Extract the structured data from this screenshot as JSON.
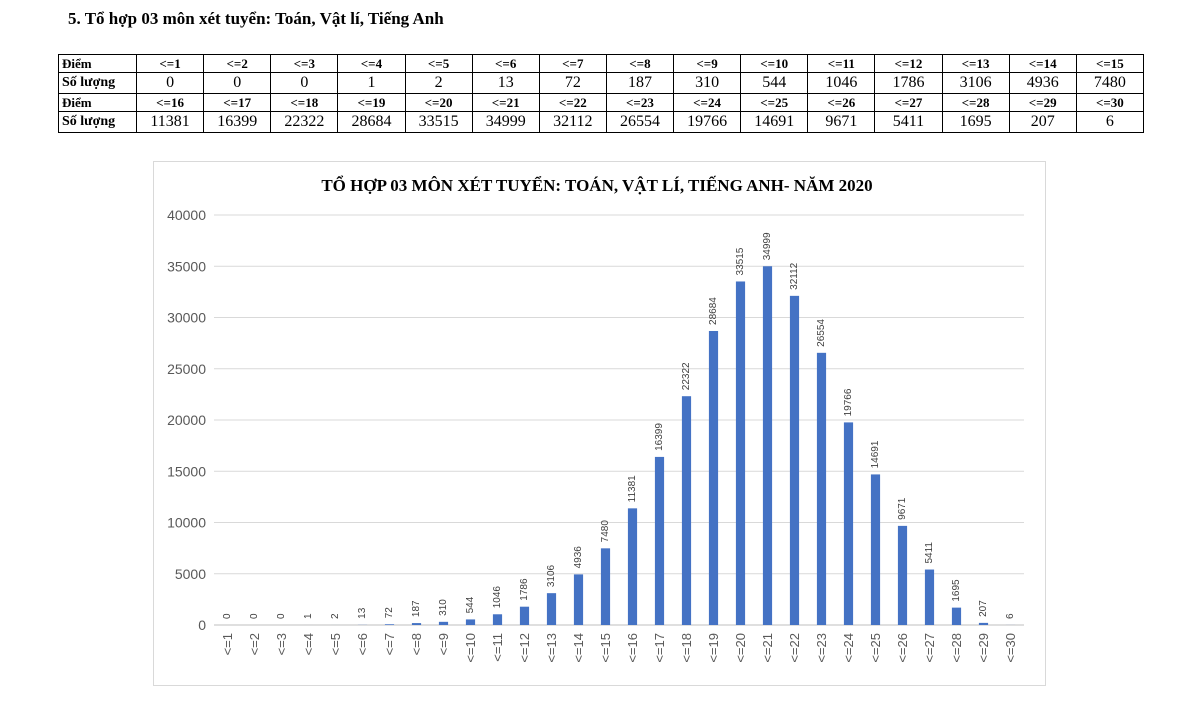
{
  "heading": "5. Tổ hợp 03 môn xét tuyển: Toán, Vật lí, Tiếng Anh",
  "table": {
    "row_label_score": "Điểm",
    "row_label_count": "Số lượng",
    "blocks": [
      {
        "scores": [
          "<=1",
          "<=2",
          "<=3",
          "<=4",
          "<=5",
          "<=6",
          "<=7",
          "<=8",
          "<=9",
          "<=10",
          "<=11",
          "<=12",
          "<=13",
          "<=14",
          "<=15"
        ],
        "counts": [
          "0",
          "0",
          "0",
          "1",
          "2",
          "13",
          "72",
          "187",
          "310",
          "544",
          "1046",
          "1786",
          "3106",
          "4936",
          "7480"
        ]
      },
      {
        "scores": [
          "<=16",
          "<=17",
          "<=18",
          "<=19",
          "<=20",
          "<=21",
          "<=22",
          "<=23",
          "<=24",
          "<=25",
          "<=26",
          "<=27",
          "<=28",
          "<=29",
          "<=30"
        ],
        "counts": [
          "11381",
          "16399",
          "22322",
          "28684",
          "33515",
          "34999",
          "32112",
          "26554",
          "19766",
          "14691",
          "9671",
          "5411",
          "1695",
          "207",
          "6"
        ]
      }
    ]
  },
  "chart_data": {
    "type": "bar",
    "title": "TỔ HỢP 03 MÔN XÉT TUYỂN: TOÁN, VẬT LÍ, TIẾNG ANH- NĂM 2020",
    "categories": [
      "<=1",
      "<=2",
      "<=3",
      "<=4",
      "<=5",
      "<=6",
      "<=7",
      "<=8",
      "<=9",
      "<=10",
      "<=11",
      "<=12",
      "<=13",
      "<=14",
      "<=15",
      "<=16",
      "<=17",
      "<=18",
      "<=19",
      "<=20",
      "<=21",
      "<=22",
      "<=23",
      "<=24",
      "<=25",
      "<=26",
      "<=27",
      "<=28",
      "<=29",
      "<=30"
    ],
    "values": [
      0,
      0,
      0,
      1,
      2,
      13,
      72,
      187,
      310,
      544,
      1046,
      1786,
      3106,
      4936,
      7480,
      11381,
      16399,
      22322,
      28684,
      33515,
      34999,
      32112,
      26554,
      19766,
      14691,
      9671,
      5411,
      1695,
      207,
      6
    ],
    "ylim": [
      0,
      40000
    ],
    "yticks": [
      0,
      5000,
      10000,
      15000,
      20000,
      25000,
      30000,
      35000,
      40000
    ],
    "grid": true,
    "legend": "none",
    "bar_color": "#4472C4"
  }
}
